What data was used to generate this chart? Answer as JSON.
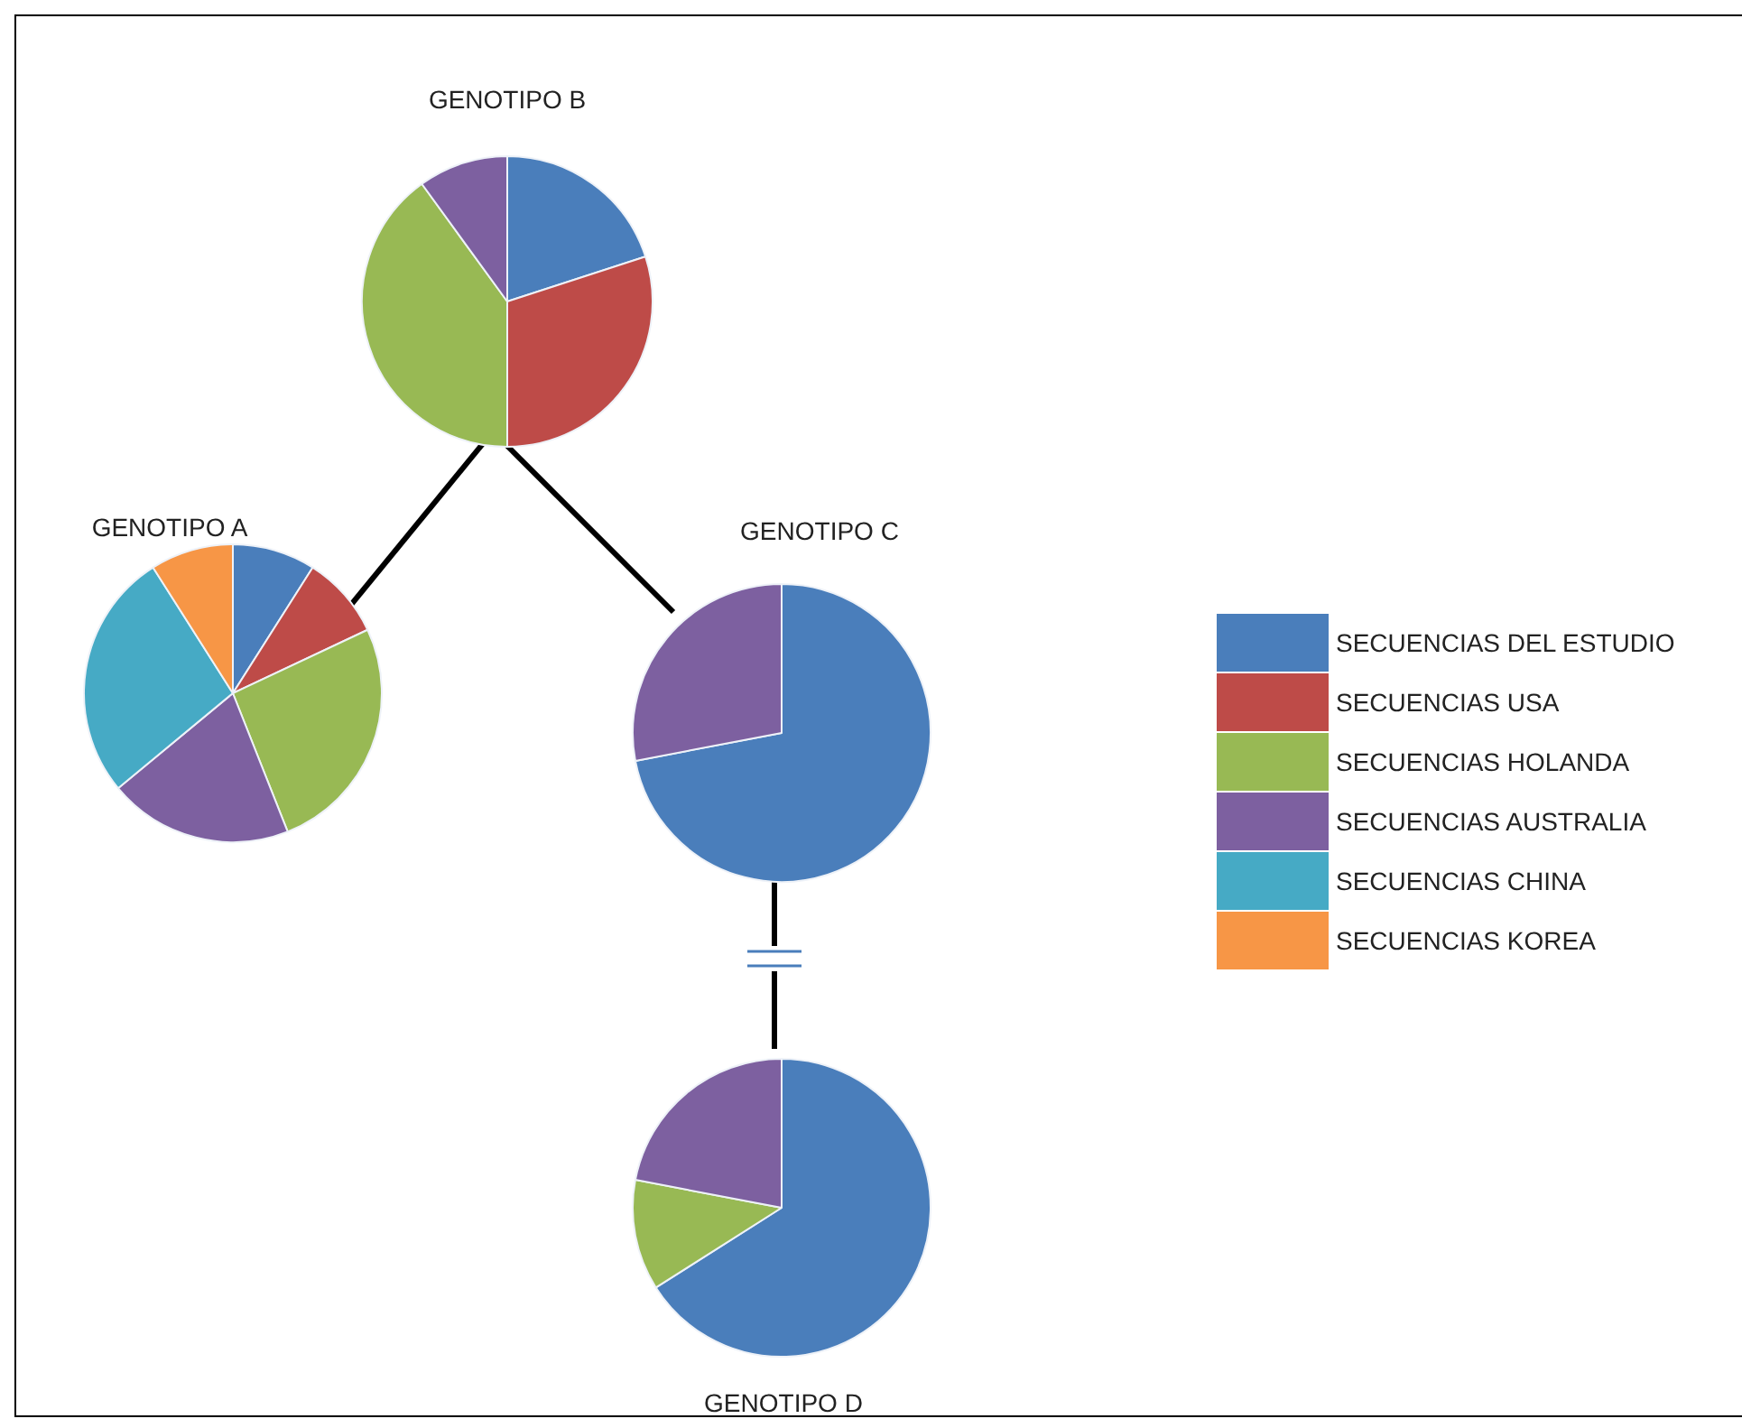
{
  "chart_data": [
    {
      "type": "pie",
      "title": "GENOTIPO B",
      "categories": [
        null,
        null,
        null,
        null
      ],
      "values": [
        20,
        30,
        40,
        10
      ],
      "colors": [
        "#4a7ebb",
        "#be4b48",
        "#98b954",
        "#7d60a0"
      ]
    },
    {
      "type": "pie",
      "title": "GENOTIPO A",
      "legend": "right",
      "categories": [
        "SECUENCIAS DEL ESTUDIO",
        "SECUENCIAS USA",
        "SECUENCIAS HOLANDA",
        "SECUENCIAS AUSTRALIA",
        "SECUENCIAS CHINA",
        "SECUENCIAS KOREA"
      ],
      "values": [
        9,
        9,
        26,
        20,
        27,
        9
      ],
      "colors": [
        "#4a7ebb",
        "#be4b48",
        "#98b954",
        "#7d60a0",
        "#46aac5",
        "#f79646"
      ]
    },
    {
      "type": "pie",
      "title": "GENOTIPO C",
      "categories": [
        null,
        null
      ],
      "values": [
        72,
        28
      ],
      "colors": [
        "#4a7ebb",
        "#7d60a0"
      ]
    },
    {
      "type": "pie",
      "title": "GENOTIPO D",
      "categories": [
        null,
        null,
        null
      ],
      "values": [
        66,
        12,
        22
      ],
      "colors": [
        "#4a7ebb",
        "#98b954",
        "#7d60a0"
      ]
    }
  ]
}
